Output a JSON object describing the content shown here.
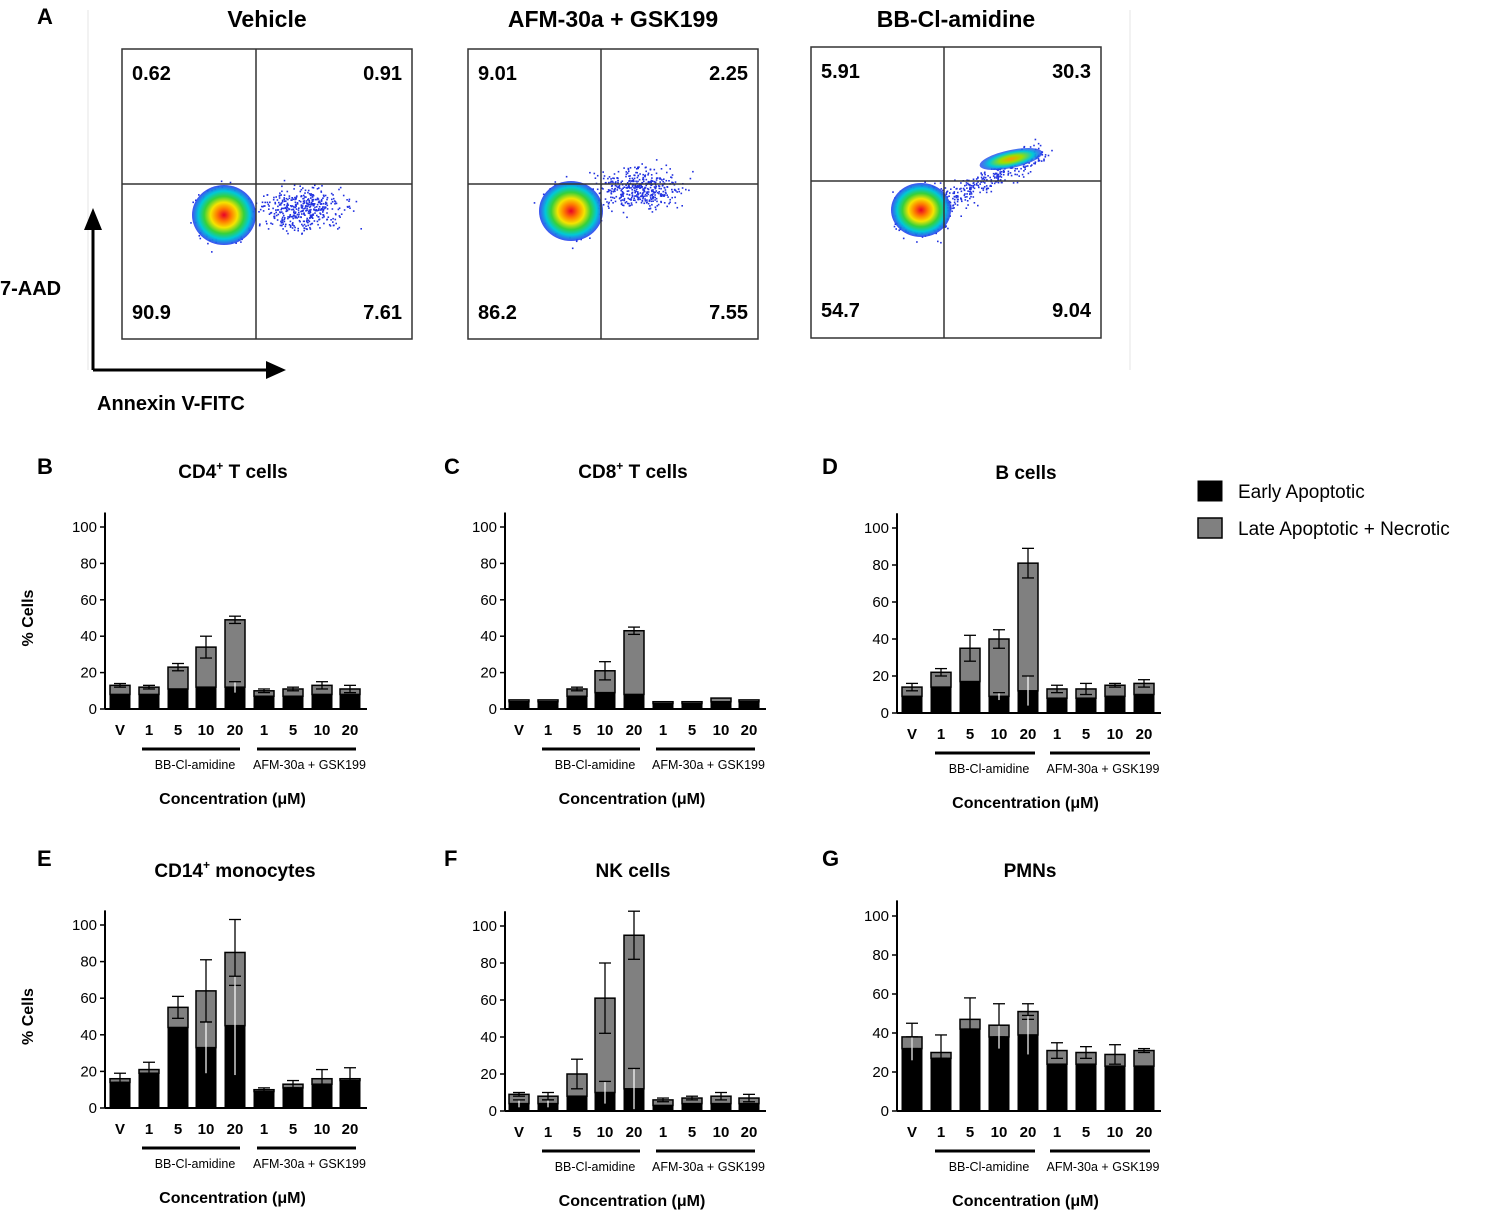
{
  "panel_letters": [
    "A",
    "B",
    "C",
    "D",
    "E",
    "F",
    "G"
  ],
  "flow": {
    "y_axis_label": "7-AAD",
    "x_axis_label": "Annexin V-FITC",
    "plots": [
      {
        "title": "Vehicle",
        "quadrants": {
          "ul": "0.62",
          "ur": "0.91",
          "ll": "90.9",
          "lr": "7.61"
        }
      },
      {
        "title": "AFM-30a + GSK199",
        "quadrants": {
          "ul": "9.01",
          "ur": "2.25",
          "ll": "86.2",
          "lr": "7.55"
        }
      },
      {
        "title": "BB-Cl-amidine",
        "quadrants": {
          "ul": "5.91",
          "ur": "30.3",
          "ll": "54.7",
          "lr": "9.04"
        }
      }
    ]
  },
  "legend": {
    "early": "Early Apoptotic",
    "late": "Late Apoptotic + Necrotic",
    "colors": {
      "early": "#000000",
      "late": "#808080"
    }
  },
  "shared": {
    "ylabel": "% Cells",
    "xlabel": "Concentration (μM)",
    "group1": "BB-Cl-amidine",
    "group2": "AFM-30a + GSK199",
    "categories": [
      "V",
      "1",
      "5",
      "10",
      "20",
      "1",
      "5",
      "10",
      "20"
    ],
    "yticks": [
      "0",
      "20",
      "40",
      "60",
      "80",
      "100"
    ]
  },
  "chart_data": [
    {
      "panel": "B",
      "type": "bar",
      "stacked": true,
      "title": "CD4",
      "title_sup": "+",
      "title_rest": " T cells",
      "ylim": [
        0,
        110
      ],
      "series": [
        {
          "name": "Early Apoptotic",
          "values": [
            8,
            8,
            11,
            12,
            12,
            7,
            7,
            8,
            8
          ],
          "err": [
            0,
            0,
            0,
            0,
            3,
            0,
            0,
            0,
            0
          ]
        },
        {
          "name": "Late Apoptotic + Necrotic",
          "values": [
            5,
            4,
            12,
            22,
            37,
            3,
            4,
            5,
            3
          ],
          "err": [
            1,
            1,
            2,
            6,
            2,
            1,
            1,
            2,
            2
          ]
        }
      ]
    },
    {
      "panel": "C",
      "type": "bar",
      "stacked": true,
      "title": "CD8",
      "title_sup": "+",
      "title_rest": " T cells",
      "ylim": [
        0,
        110
      ],
      "series": [
        {
          "name": "Early Apoptotic",
          "values": [
            4,
            4,
            7,
            9,
            8,
            3,
            3,
            4,
            4
          ],
          "err": [
            0,
            0,
            0,
            0,
            0,
            0,
            0,
            0,
            0
          ]
        },
        {
          "name": "Late Apoptotic + Necrotic",
          "values": [
            1,
            1,
            4,
            12,
            35,
            1,
            1,
            2,
            1
          ],
          "err": [
            0,
            0,
            1,
            5,
            2,
            0,
            0,
            0,
            0
          ]
        }
      ]
    },
    {
      "panel": "D",
      "type": "bar",
      "stacked": true,
      "title": "B cells",
      "title_sup": "",
      "title_rest": "",
      "ylim": [
        0,
        110
      ],
      "series": [
        {
          "name": "Early Apoptotic",
          "values": [
            9,
            14,
            17,
            9,
            12,
            8,
            8,
            9,
            10
          ],
          "err": [
            0,
            0,
            0,
            2,
            8,
            0,
            0,
            0,
            0
          ]
        },
        {
          "name": "Late Apoptotic + Necrotic",
          "values": [
            5,
            8,
            18,
            31,
            69,
            5,
            5,
            6,
            6
          ],
          "err": [
            2,
            2,
            7,
            5,
            8,
            2,
            3,
            1,
            2
          ]
        }
      ]
    },
    {
      "panel": "E",
      "type": "bar",
      "stacked": true,
      "title": "CD14",
      "title_sup": "+",
      "title_rest": " monocytes",
      "ylim": [
        0,
        110
      ],
      "series": [
        {
          "name": "Early Apoptotic",
          "values": [
            14,
            19,
            44,
            33,
            45,
            9,
            11,
            13,
            15
          ],
          "err": [
            0,
            0,
            0,
            14,
            27,
            0,
            0,
            0,
            0
          ]
        },
        {
          "name": "Late Apoptotic + Necrotic",
          "values": [
            2,
            2,
            11,
            31,
            40,
            1,
            2,
            3,
            1
          ],
          "err": [
            3,
            4,
            6,
            17,
            18,
            1,
            2,
            5,
            6
          ]
        }
      ]
    },
    {
      "panel": "F",
      "type": "bar",
      "stacked": true,
      "title": "NK cells",
      "title_sup": "",
      "title_rest": "",
      "ylim": [
        0,
        110
      ],
      "series": [
        {
          "name": "Early Apoptotic",
          "values": [
            4,
            4,
            8,
            10,
            12,
            3,
            4,
            4,
            4
          ],
          "err": [
            2,
            2,
            0,
            6,
            11,
            0,
            0,
            0,
            0
          ]
        },
        {
          "name": "Late Apoptotic + Necrotic",
          "values": [
            5,
            4,
            12,
            51,
            83,
            3,
            3,
            4,
            3
          ],
          "err": [
            1,
            2,
            8,
            19,
            13,
            1,
            1,
            2,
            2
          ]
        }
      ]
    },
    {
      "panel": "G",
      "type": "bar",
      "stacked": true,
      "title": "PMNs",
      "title_sup": "",
      "title_rest": "",
      "ylim": [
        0,
        110
      ],
      "series": [
        {
          "name": "Early Apoptotic",
          "values": [
            32,
            27,
            42,
            38,
            39,
            24,
            24,
            23,
            23
          ],
          "err": [
            6,
            0,
            0,
            6,
            10,
            0,
            0,
            0,
            0
          ]
        },
        {
          "name": "Late Apoptotic + Necrotic",
          "values": [
            6,
            3,
            5,
            6,
            12,
            7,
            6,
            6,
            8
          ],
          "err": [
            7,
            9,
            11,
            11,
            4,
            4,
            3,
            5,
            1
          ]
        }
      ]
    }
  ]
}
